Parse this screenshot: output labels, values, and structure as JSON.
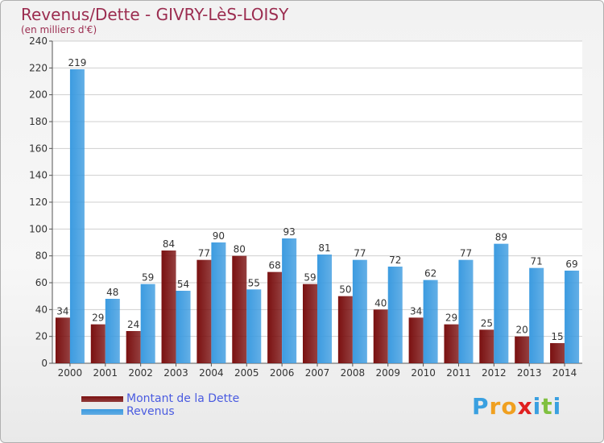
{
  "header": {
    "title": "Revenus/Dette - GIVRY-LèS-LOISY",
    "subtitle": "(en milliers d'€)"
  },
  "legend": {
    "items": [
      {
        "label": "Montant de la Dette",
        "color": "#7a1010"
      },
      {
        "label": "Revenus",
        "color": "#3c9be0"
      }
    ]
  },
  "logo": {
    "letters": [
      "P",
      "r",
      "o",
      "x",
      "i",
      "t",
      "i"
    ],
    "colors": [
      "#3aa0e0",
      "#f0a020",
      "#f0a020",
      "#e02020",
      "#3aa0e0",
      "#80c040",
      "#3aa0e0"
    ]
  },
  "chart_data": {
    "type": "bar",
    "categories": [
      "2000",
      "2001",
      "2002",
      "2003",
      "2004",
      "2005",
      "2006",
      "2007",
      "2008",
      "2009",
      "2010",
      "2011",
      "2012",
      "2013",
      "2014"
    ],
    "series": [
      {
        "name": "Montant de la Dette",
        "color": "#7a1010",
        "values": [
          34,
          29,
          24,
          84,
          77,
          80,
          68,
          59,
          50,
          40,
          34,
          29,
          25,
          20,
          15
        ]
      },
      {
        "name": "Revenus",
        "color": "#3c9be0",
        "values": [
          219,
          48,
          59,
          54,
          90,
          55,
          93,
          81,
          77,
          72,
          62,
          77,
          89,
          71,
          69
        ]
      }
    ],
    "ylim": [
      0,
      240
    ],
    "yticks": [
      0,
      20,
      40,
      60,
      80,
      100,
      120,
      140,
      160,
      180,
      200,
      220,
      240
    ],
    "grid": true
  }
}
